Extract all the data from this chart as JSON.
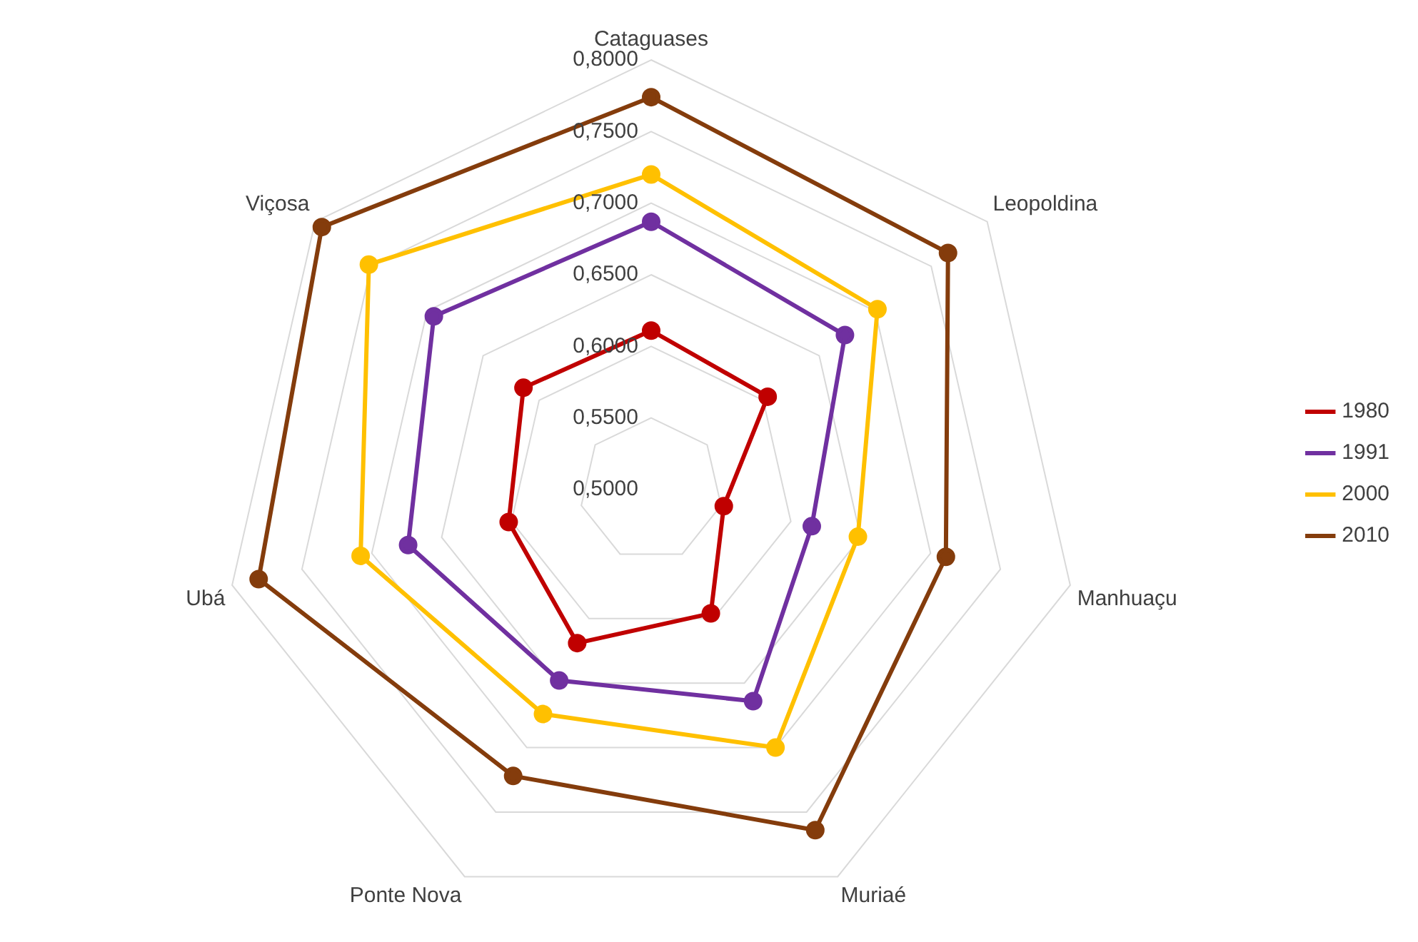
{
  "chart_data": {
    "type": "radar",
    "categories": [
      "Cataguases",
      "Leopoldina",
      "Manhuaçu",
      "Muriaé",
      "Ponte Nova",
      "Ubá",
      "Viçosa"
    ],
    "series": [
      {
        "name": "1980",
        "color": "#c00000",
        "values": [
          0.611,
          0.604,
          0.552,
          0.596,
          0.619,
          0.602,
          0.614
        ]
      },
      {
        "name": "1991",
        "color": "#7030a0",
        "values": [
          0.687,
          0.673,
          0.615,
          0.664,
          0.648,
          0.674,
          0.694
        ]
      },
      {
        "name": "2000",
        "color": "#ffc000",
        "values": [
          0.72,
          0.702,
          0.648,
          0.7,
          0.674,
          0.708,
          0.752
        ]
      },
      {
        "name": "2010",
        "color": "#843c0c",
        "values": [
          0.774,
          0.765,
          0.711,
          0.764,
          0.722,
          0.781,
          0.794
        ]
      }
    ],
    "ylim": [
      0.5,
      0.8
    ],
    "yticks": [
      {
        "value": 0.5,
        "label": "0,5000"
      },
      {
        "value": 0.55,
        "label": "0,5500"
      },
      {
        "value": 0.6,
        "label": "0,6000"
      },
      {
        "value": 0.65,
        "label": "0,6500"
      },
      {
        "value": 0.7,
        "label": "0,7000"
      },
      {
        "value": 0.75,
        "label": "0,7500"
      },
      {
        "value": 0.8,
        "label": "0,8000"
      }
    ],
    "grid": true,
    "legend": "right",
    "marker": "circle"
  }
}
